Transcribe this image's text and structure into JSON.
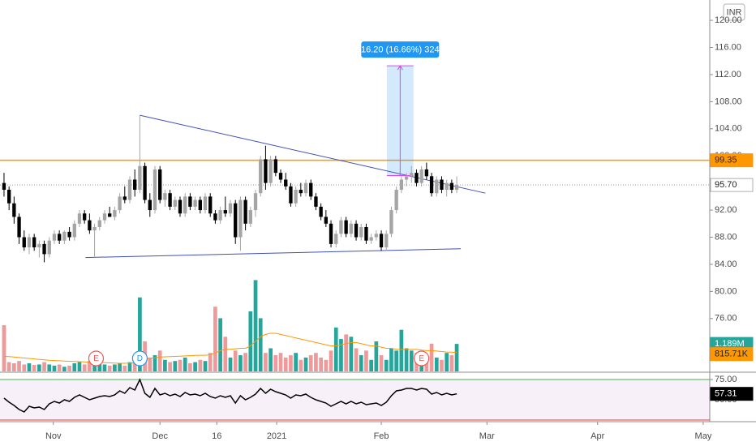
{
  "chart_data": {
    "type": "candlestick",
    "currency": "INR",
    "xlim": [
      -0.8,
      140.3
    ],
    "xticks": [
      {
        "value": 9.8,
        "label": "Nov"
      },
      {
        "value": 31,
        "label": "Dec"
      },
      {
        "value": 42.3,
        "label": "16"
      },
      {
        "value": 54.2,
        "label": "2021"
      },
      {
        "value": 75,
        "label": "Feb"
      },
      {
        "value": 96,
        "label": "Mar"
      },
      {
        "value": 118,
        "label": "Apr"
      },
      {
        "value": 139,
        "label": "May"
      }
    ],
    "ylim": [
      68.2,
      123
    ],
    "yticks": [
      {
        "value": 120,
        "label": "120.00"
      },
      {
        "value": 116,
        "label": "116.00"
      },
      {
        "value": 112,
        "label": "112.00"
      },
      {
        "value": 108,
        "label": "108.00"
      },
      {
        "value": 104,
        "label": "104.00"
      },
      {
        "value": 100,
        "label": "100.00"
      },
      {
        "value": 96,
        "label": "96.00"
      },
      {
        "value": 92,
        "label": "92.00"
      },
      {
        "value": 88,
        "label": "88.00"
      },
      {
        "value": 84,
        "label": "84.00"
      },
      {
        "value": 80,
        "label": "80.00"
      },
      {
        "value": 76,
        "label": "76.00"
      }
    ],
    "up_color": "#a5a5a5",
    "down_color": "#000000",
    "ohlc": [
      [
        96,
        97.5,
        94,
        95
      ],
      [
        95,
        95.5,
        92,
        93
      ],
      [
        93,
        94,
        90,
        91
      ],
      [
        91,
        91.5,
        87,
        88
      ],
      [
        88,
        89,
        86,
        86.5
      ],
      [
        86.5,
        88.5,
        85.5,
        88
      ],
      [
        88,
        88.5,
        86,
        86.5
      ],
      [
        86.5,
        87.5,
        85,
        87
      ],
      [
        87,
        87.5,
        84.3,
        85.5
      ],
      [
        85.5,
        88,
        85,
        87.5
      ],
      [
        87.5,
        89,
        87,
        88.5
      ],
      [
        88.5,
        89,
        87,
        87.5
      ],
      [
        87.5,
        89,
        87,
        88.8
      ],
      [
        88.8,
        89.5,
        87.5,
        88
      ],
      [
        88,
        90.5,
        87.5,
        90
      ],
      [
        90,
        92,
        89.5,
        91.5
      ],
      [
        91.5,
        92,
        90,
        90.5
      ],
      [
        90.5,
        91.5,
        88.5,
        89
      ],
      [
        89,
        90,
        85,
        89.5
      ],
      [
        89.5,
        91,
        89,
        90.5
      ],
      [
        90.5,
        92,
        90,
        91.5
      ],
      [
        91.5,
        92.5,
        91,
        91
      ],
      [
        91,
        92.5,
        90.5,
        92
      ],
      [
        92,
        94.5,
        91.5,
        94
      ],
      [
        94,
        95.5,
        93,
        93.5
      ],
      [
        93.5,
        97,
        93,
        96.5
      ],
      [
        96.5,
        98,
        94,
        95
      ],
      [
        95,
        106,
        94.5,
        98.5
      ],
      [
        98.5,
        99,
        93,
        93.5
      ],
      [
        93.5,
        94.5,
        91,
        92
      ],
      [
        92,
        98.5,
        91.5,
        98
      ],
      [
        98,
        98.5,
        93,
        93.5
      ],
      [
        93.5,
        95,
        92.5,
        94.5
      ],
      [
        94.5,
        95,
        92,
        92.5
      ],
      [
        92.5,
        94,
        92,
        93.5
      ],
      [
        93.5,
        94,
        91,
        91.5
      ],
      [
        91.5,
        94.5,
        91,
        94
      ],
      [
        94,
        94.5,
        92,
        92.5
      ],
      [
        92.5,
        94,
        92,
        93.5
      ],
      [
        93.5,
        94,
        91.5,
        92
      ],
      [
        92,
        94.5,
        91.5,
        94
      ],
      [
        94,
        94.5,
        91,
        91.5
      ],
      [
        91.5,
        92,
        90,
        90.5
      ],
      [
        90.5,
        92.5,
        90,
        92
      ],
      [
        92,
        94,
        91,
        91.5
      ],
      [
        91.5,
        93.5,
        91,
        93
      ],
      [
        93,
        93.5,
        87,
        88
      ],
      [
        88,
        94,
        86,
        93.5
      ],
      [
        93.5,
        94,
        89,
        90
      ],
      [
        90,
        92.5,
        89.5,
        92
      ],
      [
        92,
        95,
        91,
        94.5
      ],
      [
        94.5,
        100,
        94,
        99.5
      ],
      [
        99.5,
        101.5,
        95,
        96
      ],
      [
        96,
        100,
        95.5,
        99.5
      ],
      [
        99.5,
        100,
        97,
        97.5
      ],
      [
        97.5,
        98,
        96,
        96.5
      ],
      [
        96.5,
        97.5,
        95,
        95.5
      ],
      [
        95.5,
        96,
        92.5,
        93
      ],
      [
        93,
        95.5,
        92.5,
        95
      ],
      [
        95,
        96,
        94,
        94.5
      ],
      [
        94.5,
        96.5,
        94,
        96
      ],
      [
        96,
        96.5,
        93.5,
        94
      ],
      [
        94,
        94.5,
        92,
        92.5
      ],
      [
        92.5,
        93,
        90.5,
        91
      ],
      [
        91,
        92,
        89.5,
        90
      ],
      [
        90,
        90.5,
        86.5,
        87
      ],
      [
        87,
        89,
        86.5,
        88.5
      ],
      [
        88.5,
        91,
        88,
        90.5
      ],
      [
        90.5,
        91,
        88,
        88.5
      ],
      [
        88.5,
        90.5,
        88,
        90
      ],
      [
        90,
        90.5,
        87.5,
        88
      ],
      [
        88,
        90,
        87.5,
        89.5
      ],
      [
        89.5,
        90,
        87,
        87.5
      ],
      [
        87.5,
        88.5,
        87,
        88
      ],
      [
        88,
        89,
        87.5,
        88.5
      ],
      [
        88.5,
        89,
        86,
        86.5
      ],
      [
        86.5,
        89,
        86,
        88.5
      ],
      [
        88.5,
        92.5,
        88,
        92
      ],
      [
        92,
        95.5,
        91.5,
        95
      ],
      [
        95,
        97,
        94.5,
        96.5
      ],
      [
        96.5,
        97.5,
        95.5,
        97
      ],
      [
        97,
        98.5,
        96,
        97.5
      ],
      [
        97.5,
        98,
        95.5,
        96
      ],
      [
        96,
        98.5,
        95.5,
        98
      ],
      [
        98,
        99,
        96.5,
        97
      ],
      [
        97,
        97.5,
        94,
        94.5
      ],
      [
        94.5,
        97,
        94,
        96.5
      ],
      [
        96.5,
        97,
        94.5,
        95
      ],
      [
        95,
        96.5,
        94,
        96
      ],
      [
        96,
        96.5,
        94.5,
        95
      ],
      [
        95,
        97,
        94.5,
        95.7
      ]
    ],
    "price_lines": [
      {
        "value": 99.35,
        "label": "99.35",
        "color": "#ff9800"
      },
      {
        "value": 95.7,
        "label": "95.70",
        "color": "#9e9e9e"
      }
    ],
    "trendlines": [
      {
        "x": [
          27,
          95.7
        ],
        "y": [
          106,
          94.5
        ],
        "color": "#3f51b5"
      },
      {
        "x": [
          16.2,
          90.8
        ],
        "y": [
          85,
          86.3
        ],
        "color": "#3f51b5"
      }
    ],
    "measure": {
      "x": [
        76.1,
        81.4
      ],
      "y": [
        97.1,
        113.3
      ],
      "label": "16.20 (16.66%) 324"
    },
    "events": [
      {
        "x": 18.3,
        "label": "E",
        "color": "#ef5350"
      },
      {
        "x": 27,
        "label": "D",
        "color": "#2196f3"
      },
      {
        "x": 83,
        "label": "E",
        "color": "#ef5350"
      }
    ],
    "volume": {
      "ylim": [
        0,
        4000000
      ],
      "up_color": "#26a69a",
      "down_color": "#ef9a9a",
      "values": [
        2000000,
        400000,
        350000,
        450000,
        300000,
        350000,
        280000,
        300000,
        400000,
        300000,
        250000,
        300000,
        200000,
        250000,
        350000,
        400000,
        300000,
        450000,
        600000,
        350000,
        300000,
        250000,
        300000,
        350000,
        250000,
        400000,
        500000,
        3200000,
        1300000,
        600000,
        700000,
        900000,
        500000,
        400000,
        450000,
        500000,
        600000,
        350000,
        400000,
        500000,
        450000,
        800000,
        2800000,
        2300000,
        1500000,
        600000,
        900000,
        700000,
        800000,
        2600000,
        3950000,
        2300000,
        800000,
        1000000,
        700000,
        800000,
        600000,
        700000,
        800000,
        500000,
        600000,
        700000,
        800000,
        600000,
        500000,
        900000,
        1900000,
        1400000,
        1600000,
        1500000,
        1000000,
        700000,
        900000,
        500000,
        1300000,
        700000,
        500000,
        1000000,
        900000,
        1800000,
        1000000,
        900000,
        800000,
        700000,
        600000,
        1200000,
        600000,
        500000,
        800000,
        700000,
        1189000
      ],
      "last_label": "1.189M",
      "ma": {
        "color": "#ff9800",
        "last_label": "815.71K",
        "values": [
          650000,
          640000,
          620000,
          600000,
          580000,
          560000,
          540000,
          520000,
          500000,
          480000,
          470000,
          460000,
          450000,
          440000,
          430000,
          420000,
          410000,
          400000,
          400000,
          390000,
          380000,
          370000,
          360000,
          350000,
          350000,
          360000,
          370000,
          500000,
          550000,
          570000,
          590000,
          620000,
          630000,
          640000,
          650000,
          660000,
          670000,
          680000,
          690000,
          700000,
          700000,
          720000,
          800000,
          900000,
          950000,
          960000,
          980000,
          1000000,
          1000000,
          1100000,
          1300000,
          1500000,
          1600000,
          1650000,
          1650000,
          1600000,
          1550000,
          1500000,
          1450000,
          1400000,
          1350000,
          1300000,
          1250000,
          1200000,
          1150000,
          1100000,
          1100000,
          1150000,
          1200000,
          1250000,
          1250000,
          1200000,
          1150000,
          1100000,
          1100000,
          1050000,
          1000000,
          1000000,
          950000,
          950000,
          950000,
          950000,
          950000,
          920000,
          900000,
          900000,
          880000,
          860000,
          840000,
          830000,
          815710
        ]
      }
    },
    "rsi": {
      "ylim": [
        23,
        83
      ],
      "yticks": [
        {
          "value": 75,
          "label": "75.00"
        },
        {
          "value": 50,
          "label": "50.00"
        }
      ],
      "bands": [
        75,
        25
      ],
      "color": "#000000",
      "last_label": "57.31",
      "values": [
        52,
        47,
        43,
        38,
        35,
        42,
        40,
        41,
        38,
        45,
        48,
        46,
        50,
        48,
        53,
        56,
        53,
        50,
        52,
        54,
        55,
        54,
        56,
        61,
        58,
        65,
        62,
        75,
        58,
        53,
        64,
        56,
        58,
        55,
        57,
        54,
        59,
        56,
        57,
        55,
        58,
        54,
        52,
        55,
        53,
        55,
        46,
        55,
        50,
        53,
        57,
        64,
        58,
        63,
        60,
        58,
        56,
        52,
        56,
        55,
        57,
        53,
        50,
        48,
        46,
        42,
        45,
        48,
        45,
        48,
        45,
        47,
        44,
        45,
        46,
        43,
        47,
        55,
        61,
        62,
        64,
        64,
        62,
        64,
        63,
        57,
        59,
        56,
        58,
        56,
        57.31
      ]
    }
  }
}
